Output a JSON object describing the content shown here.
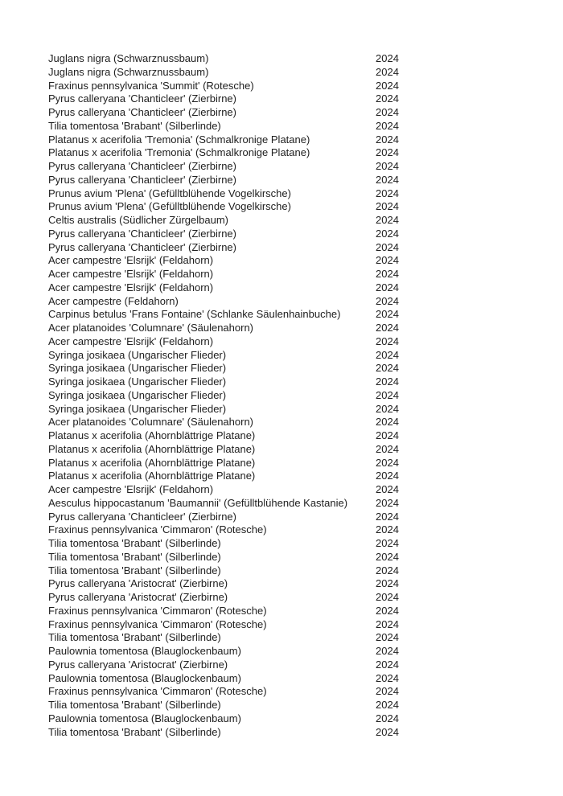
{
  "rows": [
    {
      "name": "Juglans nigra (Schwarznussbaum)",
      "year": "2024"
    },
    {
      "name": "Juglans nigra (Schwarznussbaum)",
      "year": "2024"
    },
    {
      "name": "Fraxinus pennsylvanica 'Summit' (Rotesche)",
      "year": "2024"
    },
    {
      "name": "Pyrus calleryana 'Chanticleer' (Zierbirne)",
      "year": "2024"
    },
    {
      "name": "Pyrus calleryana 'Chanticleer' (Zierbirne)",
      "year": "2024"
    },
    {
      "name": "Tilia tomentosa 'Brabant' (Silberlinde)",
      "year": "2024"
    },
    {
      "name": "Platanus x acerifolia 'Tremonia' (Schmalkronige Platane)",
      "year": "2024"
    },
    {
      "name": "Platanus x acerifolia 'Tremonia' (Schmalkronige Platane)",
      "year": "2024"
    },
    {
      "name": "Pyrus calleryana 'Chanticleer' (Zierbirne)",
      "year": "2024"
    },
    {
      "name": "Pyrus calleryana 'Chanticleer' (Zierbirne)",
      "year": "2024"
    },
    {
      "name": "Prunus avium 'Plena' (Gefülltblühende Vogelkirsche)",
      "year": "2024"
    },
    {
      "name": "Prunus avium 'Plena' (Gefülltblühende Vogelkirsche)",
      "year": "2024"
    },
    {
      "name": "Celtis australis (Südlicher Zürgelbaum)",
      "year": "2024"
    },
    {
      "name": "Pyrus calleryana 'Chanticleer' (Zierbirne)",
      "year": "2024"
    },
    {
      "name": "Pyrus calleryana 'Chanticleer' (Zierbirne)",
      "year": "2024"
    },
    {
      "name": "Acer campestre 'Elsrijk' (Feldahorn)",
      "year": "2024"
    },
    {
      "name": "Acer campestre 'Elsrijk' (Feldahorn)",
      "year": "2024"
    },
    {
      "name": "Acer campestre 'Elsrijk' (Feldahorn)",
      "year": "2024"
    },
    {
      "name": "Acer campestre (Feldahorn)",
      "year": "2024"
    },
    {
      "name": "Carpinus betulus 'Frans Fontaine' (Schlanke Säulenhainbuche)",
      "year": "2024"
    },
    {
      "name": "Acer platanoides 'Columnare' (Säulenahorn)",
      "year": "2024"
    },
    {
      "name": "Acer campestre 'Elsrijk' (Feldahorn)",
      "year": "2024"
    },
    {
      "name": "Syringa josikaea (Ungarischer Flieder)",
      "year": "2024"
    },
    {
      "name": "Syringa josikaea (Ungarischer Flieder)",
      "year": "2024"
    },
    {
      "name": "Syringa josikaea (Ungarischer Flieder)",
      "year": "2024"
    },
    {
      "name": "Syringa josikaea (Ungarischer Flieder)",
      "year": "2024"
    },
    {
      "name": "Syringa josikaea (Ungarischer Flieder)",
      "year": "2024"
    },
    {
      "name": "Acer platanoides 'Columnare' (Säulenahorn)",
      "year": "2024"
    },
    {
      "name": "Platanus x acerifolia (Ahornblättrige Platane)",
      "year": "2024"
    },
    {
      "name": "Platanus x acerifolia (Ahornblättrige Platane)",
      "year": "2024"
    },
    {
      "name": "Platanus x acerifolia (Ahornblättrige Platane)",
      "year": "2024"
    },
    {
      "name": "Platanus x acerifolia (Ahornblättrige Platane)",
      "year": "2024"
    },
    {
      "name": "Acer campestre 'Elsrijk' (Feldahorn)",
      "year": "2024"
    },
    {
      "name": "Aesculus hippocastanum 'Baumannii' (Gefülltblühende Kastanie)",
      "year": "2024"
    },
    {
      "name": "Pyrus calleryana 'Chanticleer' (Zierbirne)",
      "year": "2024"
    },
    {
      "name": "Fraxinus pennsylvanica 'Cimmaron' (Rotesche)",
      "year": "2024"
    },
    {
      "name": "Tilia tomentosa 'Brabant' (Silberlinde)",
      "year": "2024"
    },
    {
      "name": "Tilia tomentosa 'Brabant' (Silberlinde)",
      "year": "2024"
    },
    {
      "name": "Tilia tomentosa 'Brabant' (Silberlinde)",
      "year": "2024"
    },
    {
      "name": "Pyrus calleryana 'Aristocrat' (Zierbirne)",
      "year": "2024"
    },
    {
      "name": "Pyrus calleryana 'Aristocrat' (Zierbirne)",
      "year": "2024"
    },
    {
      "name": "Fraxinus pennsylvanica 'Cimmaron' (Rotesche)",
      "year": "2024"
    },
    {
      "name": "Fraxinus pennsylvanica 'Cimmaron' (Rotesche)",
      "year": "2024"
    },
    {
      "name": "Tilia tomentosa 'Brabant' (Silberlinde)",
      "year": "2024"
    },
    {
      "name": "Paulownia tomentosa (Blauglockenbaum)",
      "year": "2024"
    },
    {
      "name": "Pyrus calleryana 'Aristocrat' (Zierbirne)",
      "year": "2024"
    },
    {
      "name": "Paulownia tomentosa (Blauglockenbaum)",
      "year": "2024"
    },
    {
      "name": "Fraxinus pennsylvanica 'Cimmaron' (Rotesche)",
      "year": "2024"
    },
    {
      "name": "Tilia tomentosa 'Brabant' (Silberlinde)",
      "year": "2024"
    },
    {
      "name": "Paulownia tomentosa (Blauglockenbaum)",
      "year": "2024"
    },
    {
      "name": "Tilia tomentosa 'Brabant' (Silberlinde)",
      "year": "2024"
    }
  ]
}
